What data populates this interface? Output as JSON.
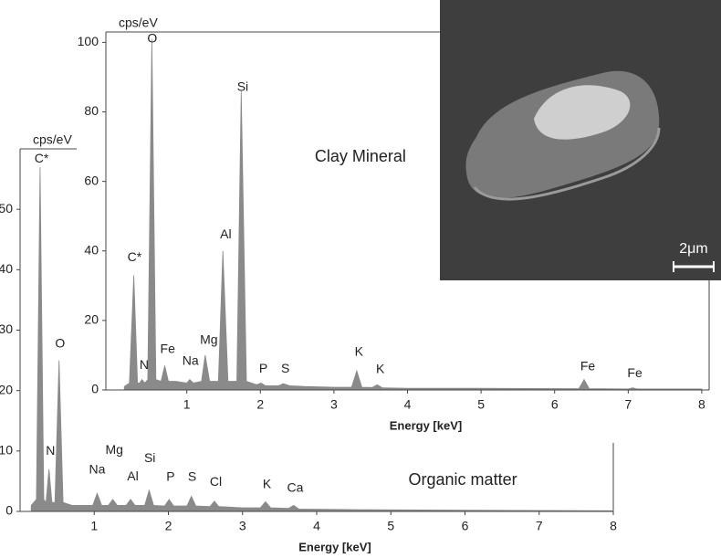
{
  "chart_data": [
    {
      "type": "area",
      "y_label": "cps/eV",
      "x_label": "Energy [keV]",
      "label": {
        "text": "Organic matter",
        "x": 5.97,
        "y": 5.1
      },
      "color": "#8a8a8a",
      "xlim": [
        0,
        8
      ],
      "ylim": [
        0,
        60
      ],
      "xticks": [
        1,
        2,
        3,
        4,
        5,
        6,
        7,
        8
      ],
      "yticks": [
        0,
        10,
        20,
        30,
        40,
        50
      ],
      "x": [
        0.15,
        0.22,
        0.27,
        0.32,
        0.35,
        0.39,
        0.43,
        0.47,
        0.525,
        0.58,
        0.7,
        0.98,
        1.04,
        1.1,
        1.19,
        1.25,
        1.31,
        1.43,
        1.49,
        1.55,
        1.68,
        1.74,
        1.8,
        1.95,
        2.01,
        2.07,
        2.25,
        2.31,
        2.37,
        2.56,
        2.62,
        2.68,
        3.0,
        3.24,
        3.31,
        3.38,
        3.62,
        3.69,
        3.76,
        4.5,
        6.0,
        8.0
      ],
      "values": [
        1,
        2,
        57,
        2,
        1.5,
        7,
        1.5,
        1.5,
        25,
        1.5,
        1,
        1,
        3,
        1,
        1,
        2,
        1,
        1,
        2,
        1,
        1,
        3.5,
        1,
        0.9,
        2,
        0.9,
        0.9,
        2.5,
        0.9,
        0.8,
        1.7,
        0.8,
        0.6,
        0.6,
        1.6,
        0.6,
        0.5,
        1,
        0.4,
        0.3,
        0.2,
        0.1
      ],
      "annotations": [
        {
          "text": "C*",
          "x": 0.29,
          "y": 58.3
        },
        {
          "text": "N",
          "x": 0.41,
          "y": 9.9
        },
        {
          "text": "O",
          "x": 0.54,
          "y": 27.7
        },
        {
          "text": "Na",
          "x": 1.04,
          "y": 6.8
        },
        {
          "text": "Mg",
          "x": 1.27,
          "y": 10.1
        },
        {
          "text": "Al",
          "x": 1.52,
          "y": 5.7
        },
        {
          "text": "Si",
          "x": 1.75,
          "y": 8.7
        },
        {
          "text": "P",
          "x": 2.03,
          "y": 5.6
        },
        {
          "text": "S",
          "x": 2.32,
          "y": 5.6
        },
        {
          "text": "Cl",
          "x": 2.64,
          "y": 4.8
        },
        {
          "text": "K",
          "x": 3.33,
          "y": 4.4
        },
        {
          "text": "Ca",
          "x": 3.71,
          "y": 3.8
        }
      ]
    },
    {
      "type": "area",
      "y_label": "cps/eV",
      "x_label": "Energy [keV]",
      "label": {
        "text": "Clay Mineral",
        "x": 3.36,
        "y": 67
      },
      "color": "#8a8a8a",
      "xlim": [
        -0.1,
        8.1
      ],
      "ylim": [
        0,
        103
      ],
      "xticks": [
        1,
        2,
        3,
        4,
        5,
        6,
        7,
        8
      ],
      "yticks": [
        0,
        20,
        40,
        60,
        80,
        100
      ],
      "x": [
        0.15,
        0.22,
        0.28,
        0.33,
        0.36,
        0.39,
        0.43,
        0.47,
        0.525,
        0.58,
        0.65,
        0.7,
        0.75,
        0.85,
        1.0,
        1.04,
        1.09,
        1.2,
        1.25,
        1.31,
        1.43,
        1.49,
        1.56,
        1.68,
        1.74,
        1.81,
        1.95,
        2.01,
        2.07,
        2.25,
        2.31,
        2.4,
        2.6,
        3.0,
        3.24,
        3.31,
        3.38,
        3.52,
        3.59,
        3.66,
        4.0,
        5.0,
        6.0,
        6.33,
        6.4,
        6.47,
        7.0,
        7.06,
        7.12,
        7.5,
        8.0
      ],
      "values": [
        1,
        2,
        33,
        2,
        2,
        3,
        2,
        3,
        101,
        3,
        2.5,
        7,
        2.5,
        2.5,
        2,
        3,
        2,
        2.5,
        10,
        2.5,
        2.5,
        40,
        2.5,
        2.5,
        86,
        2.5,
        1.5,
        2,
        1.2,
        1.2,
        1.8,
        1.2,
        1,
        0.8,
        0.8,
        5.5,
        0.8,
        0.7,
        1.5,
        0.6,
        0.5,
        0.5,
        0.4,
        0.4,
        3,
        0.4,
        0.3,
        0.6,
        0.3,
        0.3,
        0.3
      ],
      "annotations": [
        {
          "text": "C*",
          "x": 0.29,
          "y": 38
        },
        {
          "text": "N",
          "x": 0.42,
          "y": 7
        },
        {
          "text": "O",
          "x": 0.53,
          "y": 101
        },
        {
          "text": "Fe",
          "x": 0.74,
          "y": 11.6
        },
        {
          "text": "Na",
          "x": 1.05,
          "y": 8.2
        },
        {
          "text": "Mg",
          "x": 1.3,
          "y": 14.2
        },
        {
          "text": "Al",
          "x": 1.53,
          "y": 44.6
        },
        {
          "text": "Si",
          "x": 1.76,
          "y": 87
        },
        {
          "text": "P",
          "x": 2.04,
          "y": 6
        },
        {
          "text": "S",
          "x": 2.34,
          "y": 6
        },
        {
          "text": "K",
          "x": 3.34,
          "y": 10.8
        },
        {
          "text": "K",
          "x": 3.63,
          "y": 5.8
        },
        {
          "text": "Fe",
          "x": 6.45,
          "y": 6.6
        },
        {
          "text": "Fe",
          "x": 7.09,
          "y": 4.7
        }
      ]
    }
  ],
  "image": {
    "scale_bar": "2μm"
  }
}
